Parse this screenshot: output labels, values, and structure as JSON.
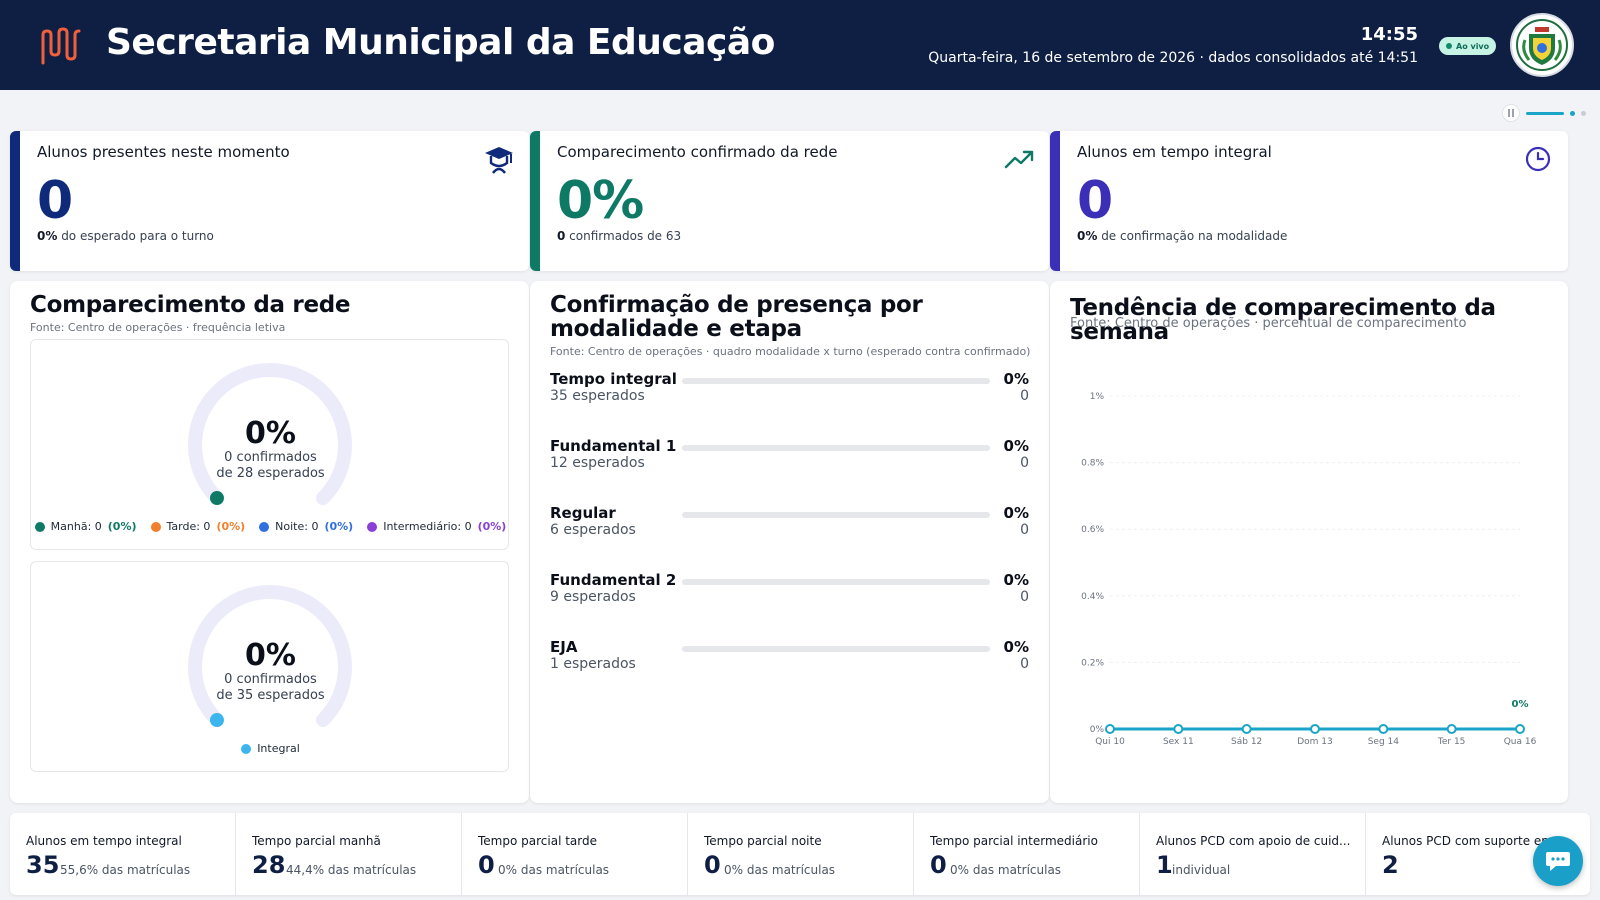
{
  "header": {
    "title": "Secretaria Municipal da Educação",
    "clock": "14:55",
    "date_line": "Quarta-feira, 16 de setembro de 2026 · dados consolidados até 14:51",
    "live_badge": "Ao vivo",
    "logo_icon": "bar-logo-icon",
    "crest_icon": "municipal-crest-icon"
  },
  "colors": {
    "header_bg": "#0f1f44",
    "navy": "#0f2a7a",
    "teal": "#0e7a66",
    "purple": "#3b2fb8",
    "manha": "#0e7a66",
    "tarde": "#f07f2e",
    "noite": "#2f6fde",
    "intermediario": "#8a3fd6",
    "integral": "#3bb5ee",
    "chart_line": "#1aa5c8"
  },
  "pager": {
    "active_index": 0,
    "total": 2
  },
  "kpis": [
    {
      "label": "Alunos presentes neste momento",
      "value": "0",
      "sub_bold": "0%",
      "sub_text": " do esperado para o turno",
      "icon": "graduation-cap-icon"
    },
    {
      "label": "Comparecimento confirmado da rede",
      "value": "0%",
      "sub_bold": "0",
      "sub_text": " confirmados de 63",
      "icon": "trending-up-icon"
    },
    {
      "label": "Alunos em tempo integral",
      "value": "0",
      "sub_bold": "0%",
      "sub_text": " de confirmação na modalidade",
      "icon": "clock-icon"
    }
  ],
  "attendance": {
    "title": "Comparecimento da rede",
    "source": "Fonte: Centro de operações · frequência letiva",
    "gauges": [
      {
        "pct": "0%",
        "fraction": 0,
        "confirmed": "0 confirmados",
        "expected": "de 28 esperados",
        "legend": [
          {
            "label": "Manhã: 0",
            "pct": "(0%)",
            "color": "#0e7a66"
          },
          {
            "label": "Tarde: 0",
            "pct": "(0%)",
            "color": "#f07f2e"
          },
          {
            "label": "Noite: 0",
            "pct": "(0%)",
            "color": "#2f6fde"
          },
          {
            "label": "Intermediário: 0",
            "pct": "(0%)",
            "color": "#8a3fd6"
          }
        ]
      },
      {
        "pct": "0%",
        "fraction": 0,
        "confirmed": "0 confirmados",
        "expected": "de 35 esperados",
        "legend": [
          {
            "label": "Integral",
            "pct": "",
            "color": "#3bb5ee"
          }
        ]
      }
    ]
  },
  "modalities": {
    "title": "Confirmação de presença por modalidade e etapa",
    "source": "Fonte: Centro de operações · quadro modalidade x turno (esperado contra confirmado)",
    "rows": [
      {
        "name": "Tempo integral",
        "expected": "35 esperados",
        "pct": "0%",
        "fraction": 0,
        "count": "0"
      },
      {
        "name": "Fundamental 1",
        "expected": "12 esperados",
        "pct": "0%",
        "fraction": 0,
        "count": "0"
      },
      {
        "name": "Regular",
        "expected": "6 esperados",
        "pct": "0%",
        "fraction": 0,
        "count": "0"
      },
      {
        "name": "Fundamental 2",
        "expected": "9 esperados",
        "pct": "0%",
        "fraction": 0,
        "count": "0"
      },
      {
        "name": "EJA",
        "expected": "1 esperados",
        "pct": "0%",
        "fraction": 0,
        "count": "0"
      }
    ]
  },
  "trend": {
    "title": "Tendência de comparecimento da semana",
    "source": "Fonte: Centro de operações · percentual de comparecimento"
  },
  "chart_data": {
    "type": "line",
    "title": "Tendência de comparecimento da semana",
    "x": [
      "Qui 10",
      "Sex 11",
      "Sáb 12",
      "Dom 13",
      "Seg 14",
      "Ter 15",
      "Qua 16"
    ],
    "series": [
      {
        "values": [
          0,
          0,
          0,
          0,
          0,
          0,
          0
        ]
      }
    ],
    "yticks": [
      "0%",
      "0.2%",
      "0.4%",
      "0.6%",
      "0.8%",
      "1%"
    ],
    "ylim": [
      0,
      1
    ],
    "grid": true,
    "last_label": "0%"
  },
  "strip": [
    {
      "label": "Alunos em tempo integral",
      "value": "35",
      "sub": "55,6% das matrículas"
    },
    {
      "label": "Tempo parcial manhã",
      "value": "28",
      "sub": "44,4% das matrículas"
    },
    {
      "label": "Tempo parcial tarde",
      "value": "0",
      "sub": "0% das matrículas"
    },
    {
      "label": "Tempo parcial noite",
      "value": "0",
      "sub": "0% das matrículas"
    },
    {
      "label": "Tempo parcial intermediário",
      "value": "0",
      "sub": "0% das matrículas"
    },
    {
      "label": "Alunos PCD com apoio de cuid...",
      "value": "1",
      "sub": "individual"
    },
    {
      "label": "Alunos PCD com suporte en...",
      "value": "2",
      "sub": ""
    }
  ],
  "chat": {
    "icon": "chat-bubble-icon"
  }
}
